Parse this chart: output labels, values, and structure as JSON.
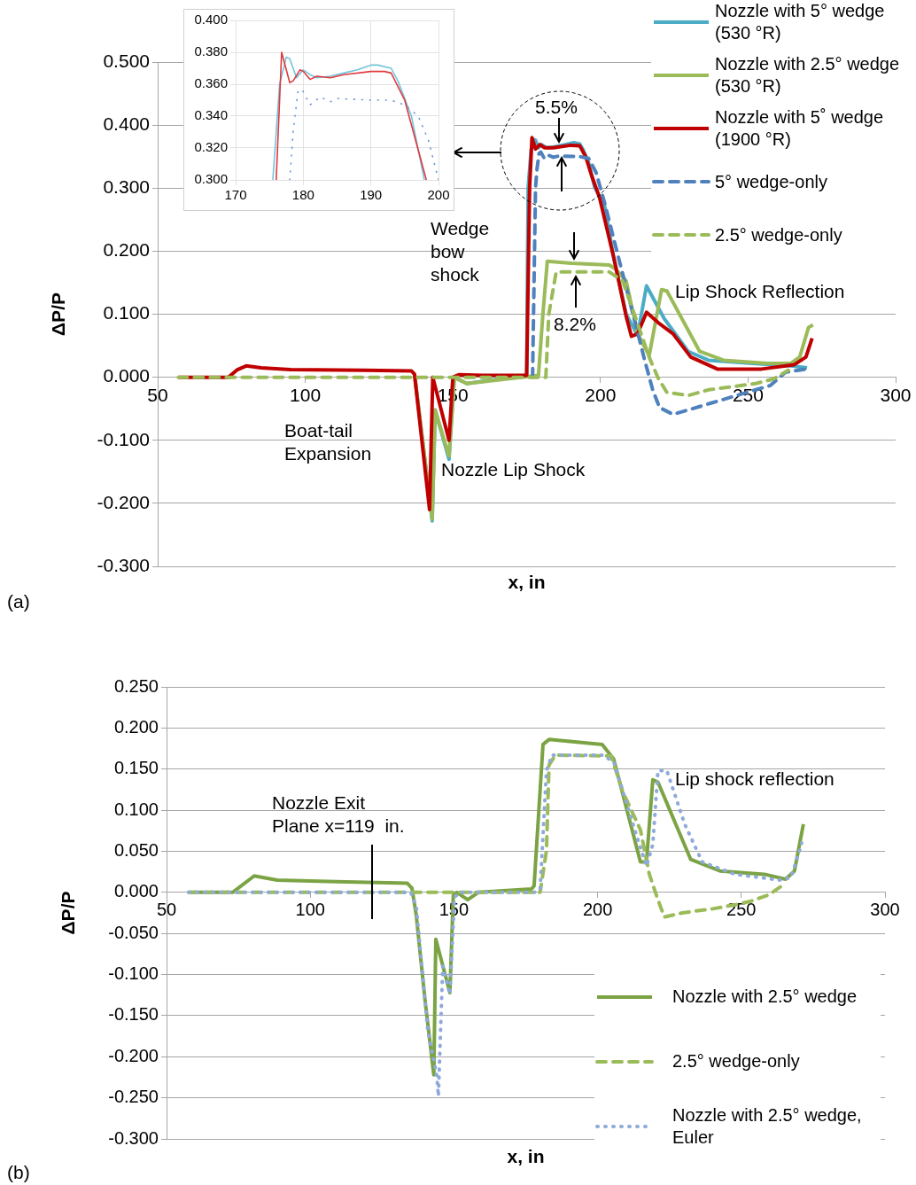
{
  "chart_data": [
    {
      "type": "line",
      "xlabel": "x, in",
      "ylabel": "ΔP/P",
      "xlim": [
        50,
        300
      ],
      "xticks": [
        50,
        100,
        150,
        200,
        250,
        300
      ],
      "ylim": [
        -0.3,
        0.5
      ],
      "yticks": [
        {
          "value": -0.3,
          "label": "-0.300"
        },
        {
          "value": -0.2,
          "label": "-0.200"
        },
        {
          "value": -0.1,
          "label": "-0.100"
        },
        {
          "value": 0,
          "label": "0.000"
        },
        {
          "value": 0.1,
          "label": "0.100"
        },
        {
          "value": 0.2,
          "label": "0.200"
        },
        {
          "value": 0.3,
          "label": "0.300"
        },
        {
          "value": 0.4,
          "label": "0.400"
        },
        {
          "value": 0.5,
          "label": "0.500"
        }
      ],
      "grid": "y",
      "legend": "top right",
      "series": [
        {
          "name": "Nozzle with 5° wedge (530 °R)",
          "color": "#4bacc6",
          "line_style": "solid",
          "x": [
            137,
            143,
            144,
            148.7,
            150.5,
            154.7,
            175,
            175.5,
            176.5,
            177.5,
            178,
            179,
            180,
            181,
            182,
            184,
            186,
            188,
            191,
            193,
            194,
            196,
            198,
            201.5,
            204.5,
            208.7,
            212.6,
            215.6,
            221.6,
            229.7,
            236.6,
            251.6,
            264.5,
            270
          ],
          "values": [
            0.005,
            -0.228,
            -0.052,
            -0.13,
            0,
            -0.01,
            0.003,
            0.3,
            0.36,
            0.377,
            0.376,
            0.364,
            0.369,
            0.366,
            0.364,
            0.365,
            0.367,
            0.369,
            0.372,
            0.37,
            0.362,
            0.34,
            0.302,
            0.27,
            0.19,
            0.1,
            0.067,
            0.145,
            0.093,
            0.041,
            0.027,
            0.022,
            0.018,
            0.015
          ]
        },
        {
          "name": "Nozzle with 2.5° wedge (530 °R)",
          "color": "#9bbb59",
          "line_style": "solid",
          "x": [
            137,
            143,
            144,
            148.7,
            150.5,
            154.7,
            179,
            180.5,
            182,
            190,
            203,
            205,
            208.7,
            212.6,
            216.5,
            220.7,
            222.5,
            233.6,
            241.7,
            256.7,
            264.5,
            267.5,
            270.5,
            272
          ],
          "values": [
            0.005,
            -0.225,
            -0.052,
            -0.125,
            0,
            -0.01,
            0.003,
            0.1,
            0.184,
            0.181,
            0.178,
            0.172,
            0.153,
            0.069,
            0.034,
            0.139,
            0.137,
            0.041,
            0.027,
            0.022,
            0.022,
            0.032,
            0.079,
            0.083
          ]
        },
        {
          "name": "Nozzle with 5˚ wedge (1900 °R)",
          "color": "#c00000",
          "line_style": "solid",
          "x": [
            57,
            74,
            77,
            80,
            85,
            95,
            120,
            136,
            137,
            142.1,
            143.2,
            148.7,
            150,
            152,
            160,
            175,
            176,
            176.8,
            178,
            179.5,
            181,
            184,
            190,
            193,
            195,
            197,
            199.7,
            204.5,
            208.7,
            210.5,
            212.6,
            215.6,
            220,
            224.6,
            230.6,
            239.6,
            254.6,
            265.7,
            269.6,
            271.7
          ],
          "values": [
            0,
            0,
            0.012,
            0.018,
            0.015,
            0.012,
            0.011,
            0.01,
            0.005,
            -0.21,
            0,
            -0.1,
            0,
            0.004,
            0.003,
            0.003,
            0.3,
            0.38,
            0.362,
            0.369,
            0.364,
            0.364,
            0.368,
            0.367,
            0.35,
            0.32,
            0.285,
            0.19,
            0.097,
            0.065,
            0.069,
            0.103,
            0.085,
            0.069,
            0.032,
            0.013,
            0.013,
            0.02,
            0.032,
            0.062
          ]
        },
        {
          "name": "5° wedge-only",
          "color": "#4f81bd",
          "line_style": "dashed",
          "x": [
            177,
            178,
            178.5,
            179.2,
            179.8,
            181,
            182.5,
            184,
            186,
            193,
            196,
            198.5,
            201.5,
            206.6,
            211.7,
            214.7,
            217.7,
            220,
            224.6,
            237.5,
            257.6,
            262.7,
            269.6
          ],
          "values": [
            0,
            0.3,
            0.33,
            0.355,
            0.357,
            0.347,
            0.352,
            0.349,
            0.351,
            0.35,
            0.347,
            0.325,
            0.275,
            0.181,
            0.088,
            0.032,
            -0.02,
            -0.048,
            -0.059,
            -0.041,
            -0.013,
            0.008,
            0.013
          ]
        },
        {
          "name": "2.5° wedge-only",
          "color": "#9bbb59",
          "line_style": "dashed",
          "x": [
            57,
            181.5,
            182.5,
            185,
            203,
            207.5,
            211.7,
            216.5,
            219.5,
            222.5,
            229.7,
            236.6,
            244.7,
            252.5,
            258.5,
            263.6
          ],
          "values": [
            0,
            0,
            0.1,
            0.167,
            0.167,
            0.153,
            0.097,
            0.032,
            -0.001,
            -0.024,
            -0.029,
            -0.02,
            -0.015,
            -0.01,
            -0.003,
            0.011
          ]
        }
      ],
      "annotations": [
        "5.5%",
        "8.2%",
        "Wedge\nbow\nshock",
        "Lip Shock Reflection",
        "Boat-tail\nExpansion",
        "Nozzle Lip Shock",
        "(a)"
      ]
    },
    {
      "type": "line",
      "xlim": [
        170,
        200
      ],
      "xticks": [
        170,
        180,
        190,
        200
      ],
      "ylim": [
        0.3,
        0.4
      ],
      "yticks": [
        {
          "value": 0.3,
          "label": "0.300"
        },
        {
          "value": 0.32,
          "label": "0.320"
        },
        {
          "value": 0.34,
          "label": "0.340"
        },
        {
          "value": 0.36,
          "label": "0.360"
        },
        {
          "value": 0.38,
          "label": "0.380"
        },
        {
          "value": 0.4,
          "label": "0.400"
        }
      ],
      "grid": true,
      "series": [
        {
          "color": "#72c4dc",
          "line_style": "solid",
          "x": [
            175.5,
            176.5,
            177.5,
            178,
            179,
            180,
            181,
            182,
            184,
            186,
            188,
            190,
            191,
            193,
            194,
            196,
            197.9
          ],
          "values": [
            0.3,
            0.36,
            0.377,
            0.376,
            0.364,
            0.369,
            0.366,
            0.364,
            0.365,
            0.367,
            0.369,
            0.372,
            0.372,
            0.37,
            0.362,
            0.34,
            0.3
          ]
        },
        {
          "color": "#e0393e",
          "line_style": "solid",
          "x": [
            176,
            176.8,
            178,
            178.5,
            179.5,
            180,
            181,
            182,
            184,
            186,
            190,
            192,
            193,
            195,
            198.2
          ],
          "values": [
            0.3,
            0.38,
            0.361,
            0.362,
            0.369,
            0.368,
            0.363,
            0.365,
            0.364,
            0.366,
            0.368,
            0.368,
            0.367,
            0.35,
            0.3
          ]
        },
        {
          "color": "#6f98d3",
          "line_style": "dotted",
          "x": [
            178,
            178.5,
            179.2,
            179.8,
            181,
            182.5,
            184,
            185,
            190,
            193,
            195,
            197,
            198.5,
            200
          ],
          "values": [
            0.3,
            0.33,
            0.355,
            0.357,
            0.347,
            0.352,
            0.349,
            0.351,
            0.35,
            0.35,
            0.347,
            0.34,
            0.325,
            0.3
          ]
        }
      ]
    },
    {
      "type": "line",
      "xlabel": "x, in",
      "ylabel": "ΔP/P",
      "xlim": [
        50,
        300
      ],
      "xticks": [
        50,
        100,
        150,
        200,
        250,
        300
      ],
      "ylim": [
        -0.3,
        0.25
      ],
      "yticks": [
        {
          "value": -0.3,
          "label": "-0.300"
        },
        {
          "value": -0.25,
          "label": "-0.250"
        },
        {
          "value": -0.2,
          "label": "-0.200"
        },
        {
          "value": -0.15,
          "label": "-0.150"
        },
        {
          "value": -0.1,
          "label": "-0.100"
        },
        {
          "value": -0.05,
          "label": "-0.050"
        },
        {
          "value": 0,
          "label": "0.000"
        },
        {
          "value": 0.05,
          "label": "0.050"
        },
        {
          "value": 0.1,
          "label": "0.100"
        },
        {
          "value": 0.15,
          "label": "0.150"
        },
        {
          "value": 0.2,
          "label": "0.200"
        },
        {
          "value": 0.25,
          "label": "0.250"
        }
      ],
      "grid": "y",
      "legend": "bottom right",
      "series": [
        {
          "name": "Nozzle with 2.5° wedge",
          "color": "#7ba344",
          "line_style": "solid",
          "x": [
            57.7,
            73,
            80.5,
            88.5,
            109,
            133.8,
            135.4,
            136.9,
            140,
            143,
            143.7,
            148.6,
            149.8,
            151,
            154.8,
            158.5,
            177,
            177.9,
            181,
            183.1,
            201.6,
            205.6,
            214.9,
            217,
            219.2,
            221,
            232.4,
            242.6,
            258,
            265.4,
            268.5,
            271.6
          ],
          "values": [
            0,
            0,
            0.02,
            0.015,
            0.013,
            0.011,
            0.005,
            -0.028,
            -0.133,
            -0.222,
            -0.057,
            -0.122,
            -0.003,
            0,
            -0.009,
            0,
            0.004,
            0.008,
            0.18,
            0.186,
            0.18,
            0.162,
            0.037,
            0.037,
            0.137,
            0.134,
            0.04,
            0.026,
            0.022,
            0.016,
            0.026,
            0.083
          ]
        },
        {
          "name": "2.5° wedge-only",
          "color": "#9bbb59",
          "line_style": "dashed",
          "x": [
            57.7,
            180,
            182.2,
            183.1,
            185.3,
            204.7,
            208.7,
            214.9,
            218,
            220.7,
            223.2,
            229.4,
            240,
            248,
            253.1,
            259.6,
            265.4
          ],
          "values": [
            0,
            0,
            0.051,
            0.155,
            0.167,
            0.166,
            0.123,
            0.076,
            0.022,
            -0.006,
            -0.03,
            -0.025,
            -0.02,
            -0.015,
            -0.011,
            -0.003,
            0.011
          ]
        },
        {
          "name": "Nozzle with 2.5° wedge, Euler",
          "color": "#8eaadb",
          "line_style": "dotted",
          "x": [
            57.7,
            135,
            136.9,
            140.9,
            144,
            144.6,
            146.1,
            148.6,
            150.2,
            152,
            178,
            180,
            182.2,
            184.1,
            201.6,
            205.6,
            213.9,
            217,
            219.2,
            221,
            224.1,
            230.3,
            236.4,
            247.8,
            263.2,
            267.3,
            270.3,
            271
          ],
          "values": [
            0,
            0,
            -0.017,
            -0.168,
            -0.222,
            -0.248,
            -0.09,
            -0.124,
            -0.006,
            0,
            0,
            0.004,
            0.148,
            0.167,
            0.167,
            0.159,
            0.065,
            0.032,
            0.058,
            0.148,
            0.148,
            0.083,
            0.037,
            0.022,
            0.015,
            0.018,
            0.051,
            0.06
          ]
        }
      ],
      "annotations": [
        "Lip shock reflection",
        "Nozzle Exit\nPlane x=119  in.",
        "(b)"
      ]
    }
  ]
}
